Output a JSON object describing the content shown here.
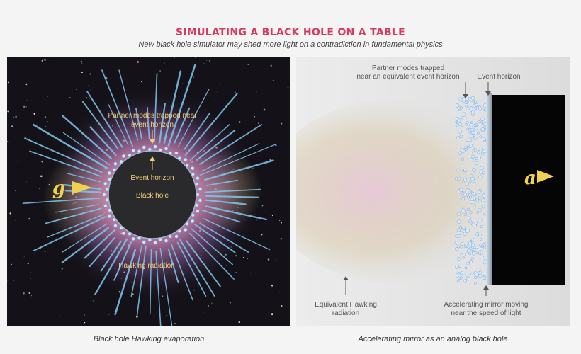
{
  "title": "SIMULATING A BLACK HOLE ON A TABLE",
  "subtitle": "New black hole simulator may shed more light on a contradiction in fundamental physics",
  "left_panel": {
    "caption": "Black hole Hawking evaporation",
    "labels": {
      "partner_line1": "Partner modes trapped near",
      "partner_line2": "event horizon",
      "event_horizon": "Event horizon",
      "black_hole": "Black hole",
      "hawking": "Hawking radiation",
      "gravity_symbol": "g"
    }
  },
  "right_panel": {
    "caption": "Accelerating mirror as an analog black hole",
    "labels": {
      "partner_line1": "Partner modes trapped",
      "partner_line2": "near an equivalent event horizon",
      "event_horizon": "Event horizon",
      "equiv_line1": "Equivalent Hawking",
      "equiv_line2": "radiation",
      "mirror_line1": "Accelerating mirror moving",
      "mirror_line2": "near the speed of light",
      "accel_symbol": "a"
    }
  },
  "colors": {
    "title": "#d63a5e",
    "label_yellow": "#f2d07a",
    "ray_blue": "#7ec8f0",
    "arrow_yellow": "#f0d050"
  }
}
